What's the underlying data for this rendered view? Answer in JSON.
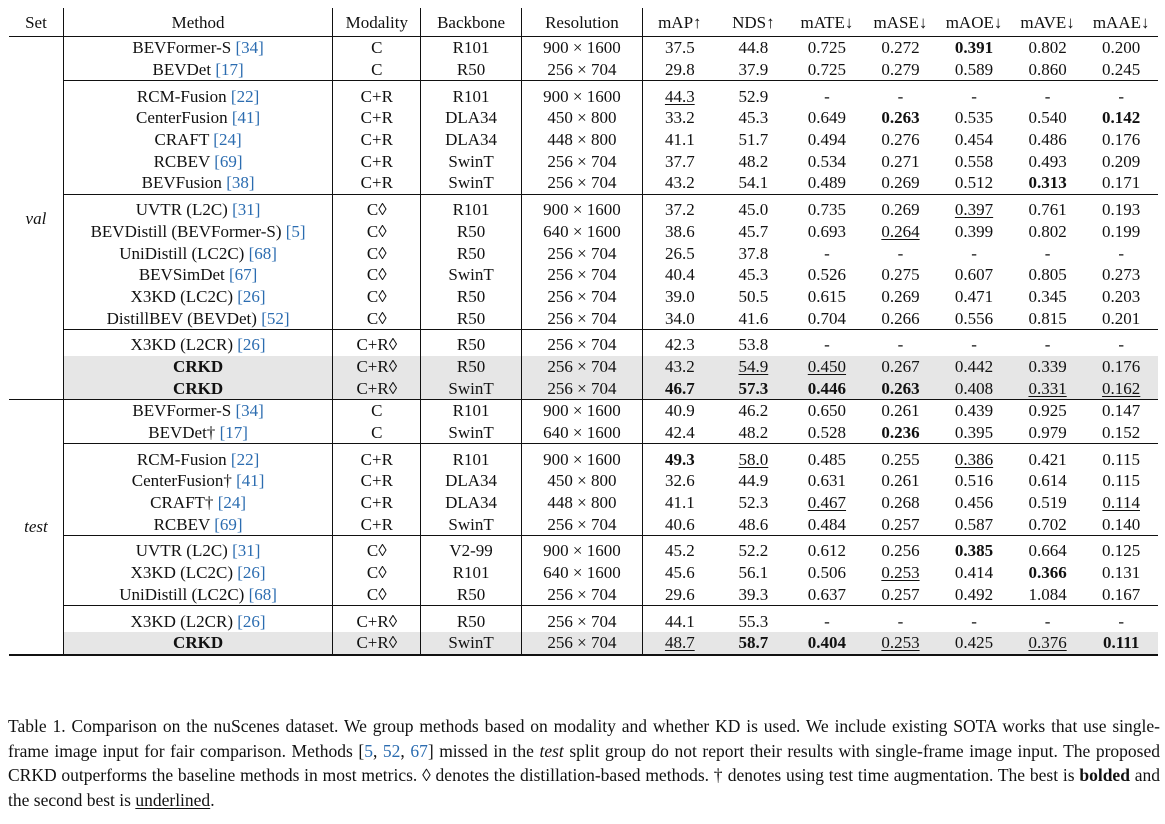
{
  "headers": [
    "Set",
    "Method",
    "Modality",
    "Backbone",
    "Resolution",
    "mAP↑",
    "NDS↑",
    "mATE↓",
    "mASE↓",
    "mAOE↓",
    "mAVE↓",
    "mAAE↓"
  ],
  "val": {
    "label": "val",
    "groups": [
      [
        {
          "m": "BEVFormer-S",
          "r": "[34]",
          "mod": "C",
          "bb": "R101",
          "res": "900 × 1600",
          "v": [
            "37.5",
            "44.8",
            "0.725",
            "0.272",
            "0.391",
            "0.802",
            "0.200"
          ],
          "b": [
            4
          ],
          "u": []
        },
        {
          "m": "BEVDet",
          "r": "[17]",
          "mod": "C",
          "bb": "R50",
          "res": "256 × 704",
          "v": [
            "29.8",
            "37.9",
            "0.725",
            "0.279",
            "0.589",
            "0.860",
            "0.245"
          ],
          "b": [],
          "u": []
        }
      ],
      [
        {
          "m": "RCM-Fusion",
          "r": "[22]",
          "mod": "C+R",
          "bb": "R101",
          "res": "900 × 1600",
          "v": [
            "44.3",
            "52.9",
            "-",
            "-",
            "-",
            "-",
            "-"
          ],
          "b": [],
          "u": [
            0
          ]
        },
        {
          "m": "CenterFusion",
          "r": "[41]",
          "mod": "C+R",
          "bb": "DLA34",
          "res": "450 × 800",
          "v": [
            "33.2",
            "45.3",
            "0.649",
            "0.263",
            "0.535",
            "0.540",
            "0.142"
          ],
          "b": [
            3,
            6
          ],
          "u": []
        },
        {
          "m": "CRAFT",
          "r": "[24]",
          "mod": "C+R",
          "bb": "DLA34",
          "res": "448 × 800",
          "v": [
            "41.1",
            "51.7",
            "0.494",
            "0.276",
            "0.454",
            "0.486",
            "0.176"
          ],
          "b": [],
          "u": []
        },
        {
          "m": "RCBEV",
          "r": "[69]",
          "mod": "C+R",
          "bb": "SwinT",
          "res": "256 × 704",
          "v": [
            "37.7",
            "48.2",
            "0.534",
            "0.271",
            "0.558",
            "0.493",
            "0.209"
          ],
          "b": [],
          "u": []
        },
        {
          "m": "BEVFusion",
          "r": "[38]",
          "mod": "C+R",
          "bb": "SwinT",
          "res": "256 × 704",
          "v": [
            "43.2",
            "54.1",
            "0.489",
            "0.269",
            "0.512",
            "0.313",
            "0.171"
          ],
          "b": [
            5
          ],
          "u": []
        }
      ],
      [
        {
          "m": "UVTR (L2C)",
          "r": "[31]",
          "mod": "C◊",
          "bb": "R101",
          "res": "900 × 1600",
          "v": [
            "37.2",
            "45.0",
            "0.735",
            "0.269",
            "0.397",
            "0.761",
            "0.193"
          ],
          "b": [],
          "u": [
            4
          ]
        },
        {
          "m": "BEVDistill (BEVFormer-S)",
          "r": "[5]",
          "mod": "C◊",
          "bb": "R50",
          "res": "640 × 1600",
          "v": [
            "38.6",
            "45.7",
            "0.693",
            "0.264",
            "0.399",
            "0.802",
            "0.199"
          ],
          "b": [],
          "u": [
            3
          ]
        },
        {
          "m": "UniDistill (LC2C)",
          "r": "[68]",
          "mod": "C◊",
          "bb": "R50",
          "res": "256 × 704",
          "v": [
            "26.5",
            "37.8",
            "-",
            "-",
            "-",
            "-",
            "-"
          ],
          "b": [],
          "u": []
        },
        {
          "m": "BEVSimDet",
          "r": "[67]",
          "mod": "C◊",
          "bb": "SwinT",
          "res": "256 × 704",
          "v": [
            "40.4",
            "45.3",
            "0.526",
            "0.275",
            "0.607",
            "0.805",
            "0.273"
          ],
          "b": [],
          "u": []
        },
        {
          "m": "X3KD (LC2C)",
          "r": "[26]",
          "mod": "C◊",
          "bb": "R50",
          "res": "256 × 704",
          "v": [
            "39.0",
            "50.5",
            "0.615",
            "0.269",
            "0.471",
            "0.345",
            "0.203"
          ],
          "b": [],
          "u": []
        },
        {
          "m": "DistillBEV (BEVDet)",
          "r": "[52]",
          "mod": "C◊",
          "bb": "R50",
          "res": "256 × 704",
          "v": [
            "34.0",
            "41.6",
            "0.704",
            "0.266",
            "0.556",
            "0.815",
            "0.201"
          ],
          "b": [],
          "u": []
        }
      ],
      [
        {
          "m": "X3KD (L2CR)",
          "r": "[26]",
          "mod": "C+R◊",
          "bb": "R50",
          "res": "256 × 704",
          "v": [
            "42.3",
            "53.8",
            "-",
            "-",
            "-",
            "-",
            "-"
          ],
          "b": [],
          "u": []
        },
        {
          "m": "CRKD",
          "r": "",
          "mod": "C+R◊",
          "bb": "R50",
          "res": "256 × 704",
          "v": [
            "43.2",
            "54.9",
            "0.450",
            "0.267",
            "0.442",
            "0.339",
            "0.176"
          ],
          "b": [],
          "u": [
            1,
            2
          ],
          "hl": true
        },
        {
          "m": "CRKD",
          "r": "",
          "mod": "C+R◊",
          "bb": "SwinT",
          "res": "256 × 704",
          "v": [
            "46.7",
            "57.3",
            "0.446",
            "0.263",
            "0.408",
            "0.331",
            "0.162"
          ],
          "b": [
            0,
            1,
            2,
            3
          ],
          "u": [
            5,
            6
          ],
          "hl": true
        }
      ]
    ]
  },
  "test": {
    "label": "test",
    "groups": [
      [
        {
          "m": "BEVFormer-S",
          "r": "[34]",
          "mod": "C",
          "bb": "R101",
          "res": "900 × 1600",
          "v": [
            "40.9",
            "46.2",
            "0.650",
            "0.261",
            "0.439",
            "0.925",
            "0.147"
          ],
          "b": [],
          "u": []
        },
        {
          "m": "BEVDet†",
          "r": "[17]",
          "mod": "C",
          "bb": "SwinT",
          "res": "640 × 1600",
          "v": [
            "42.4",
            "48.2",
            "0.528",
            "0.236",
            "0.395",
            "0.979",
            "0.152"
          ],
          "b": [
            3
          ],
          "u": []
        }
      ],
      [
        {
          "m": "RCM-Fusion",
          "r": "[22]",
          "mod": "C+R",
          "bb": "R101",
          "res": "900 × 1600",
          "v": [
            "49.3",
            "58.0",
            "0.485",
            "0.255",
            "0.386",
            "0.421",
            "0.115"
          ],
          "b": [
            0
          ],
          "u": [
            1,
            4
          ]
        },
        {
          "m": "CenterFusion†",
          "r": "[41]",
          "mod": "C+R",
          "bb": "DLA34",
          "res": "450 × 800",
          "v": [
            "32.6",
            "44.9",
            "0.631",
            "0.261",
            "0.516",
            "0.614",
            "0.115"
          ],
          "b": [],
          "u": []
        },
        {
          "m": "CRAFT†",
          "r": "[24]",
          "mod": "C+R",
          "bb": "DLA34",
          "res": "448 × 800",
          "v": [
            "41.1",
            "52.3",
            "0.467",
            "0.268",
            "0.456",
            "0.519",
            "0.114"
          ],
          "b": [],
          "u": [
            2,
            6
          ]
        },
        {
          "m": "RCBEV",
          "r": "[69]",
          "mod": "C+R",
          "bb": "SwinT",
          "res": "256 × 704",
          "v": [
            "40.6",
            "48.6",
            "0.484",
            "0.257",
            "0.587",
            "0.702",
            "0.140"
          ],
          "b": [],
          "u": []
        }
      ],
      [
        {
          "m": "UVTR (L2C)",
          "r": "[31]",
          "mod": "C◊",
          "bb": "V2-99",
          "res": "900 × 1600",
          "v": [
            "45.2",
            "52.2",
            "0.612",
            "0.256",
            "0.385",
            "0.664",
            "0.125"
          ],
          "b": [
            4
          ],
          "u": []
        },
        {
          "m": "X3KD (LC2C)",
          "r": "[26]",
          "mod": "C◊",
          "bb": "R101",
          "res": "640 × 1600",
          "v": [
            "45.6",
            "56.1",
            "0.506",
            "0.253",
            "0.414",
            "0.366",
            "0.131"
          ],
          "b": [
            5
          ],
          "u": [
            3
          ]
        },
        {
          "m": "UniDistill (LC2C)",
          "r": "[68]",
          "mod": "C◊",
          "bb": "R50",
          "res": "256 × 704",
          "v": [
            "29.6",
            "39.3",
            "0.637",
            "0.257",
            "0.492",
            "1.084",
            "0.167"
          ],
          "b": [],
          "u": []
        }
      ],
      [
        {
          "m": "X3KD (L2CR)",
          "r": "[26]",
          "mod": "C+R◊",
          "bb": "R50",
          "res": "256 × 704",
          "v": [
            "44.1",
            "55.3",
            "-",
            "-",
            "-",
            "-",
            "-"
          ],
          "b": [],
          "u": []
        },
        {
          "m": "CRKD",
          "r": "",
          "mod": "C+R◊",
          "bb": "SwinT",
          "res": "256 × 704",
          "v": [
            "48.7",
            "58.7",
            "0.404",
            "0.253",
            "0.425",
            "0.376",
            "0.111"
          ],
          "b": [
            1,
            2,
            6
          ],
          "u": [
            0,
            3,
            5
          ],
          "hl": true
        }
      ]
    ]
  },
  "caption": {
    "p1": "Table 1. Comparison on the nuScenes dataset. We group methods based on modality and whether KD is used. We include existing SOTA works that use single-frame image input for fair comparison. Methods [",
    "ref1": "5",
    "sep1": ", ",
    "ref2": "52",
    "sep2": ", ",
    "ref3": "67",
    "p2": "] missed in the ",
    "test_word": "test",
    "p3": " split group do not report their results with single-frame image input. The proposed CRKD outperforms the baseline methods in most metrics. ◊ denotes the distillation-based methods. † denotes using test time augmentation. The best is ",
    "bold_word": "bolded",
    "p4": " and the second best is ",
    "under_word": "underlined",
    "p5": "."
  }
}
